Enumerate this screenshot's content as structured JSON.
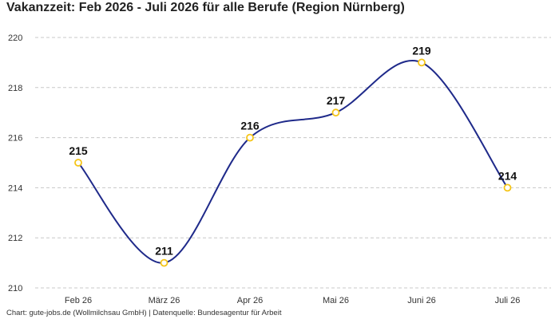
{
  "chart_data": {
    "type": "line",
    "title": "Vakanzzeit: Feb 2026 - Juli 2026 für alle Berufe (Region Nürnberg)",
    "categories": [
      "Feb 26",
      "März 26",
      "Apr 26",
      "Mai 26",
      "Juni 26",
      "Juli 26"
    ],
    "values": [
      215,
      211,
      216,
      217,
      219,
      214
    ],
    "data_labels": [
      "215",
      "211",
      "216",
      "217",
      "219",
      "214"
    ],
    "ylim": [
      210,
      220
    ],
    "yticks": [
      "210",
      "212",
      "214",
      "216",
      "218",
      "220"
    ],
    "xlabel": "",
    "ylabel": "",
    "grid": "horizontal dashed",
    "line_color": "#1f2a8a",
    "marker_color": "#f5c518",
    "smooth": true
  },
  "footer": "Chart: gute-jobs.de (Wollmilchsau GmbH) | Datenquelle: Bundesagentur für Arbeit"
}
